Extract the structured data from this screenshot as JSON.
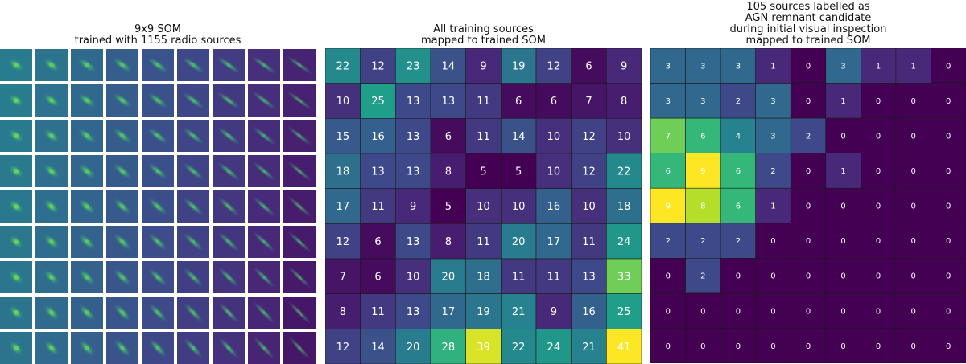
{
  "colors": {
    "viridis": [
      "#440154",
      "#482878",
      "#3e4989",
      "#31688e",
      "#26828e",
      "#1f9e89",
      "#35b779",
      "#6ece58",
      "#b5de2b",
      "#fde725"
    ],
    "grid_line": "#1a1a1a",
    "text_on_cell": "#ffffff"
  },
  "som_panel": {
    "title_lines": [
      "9x9 SOM",
      "trained with 1155 radio sources"
    ]
  },
  "chart_data": [
    {
      "type": "heatmap",
      "title": "All training sources mapped to trained SOM",
      "title_lines": [
        "All training sources",
        "mapped to trained SOM"
      ],
      "rows": 9,
      "cols": 9,
      "color_range": [
        5,
        41
      ],
      "values": [
        [
          22,
          12,
          23,
          14,
          9,
          19,
          12,
          6,
          9
        ],
        [
          10,
          25,
          13,
          13,
          11,
          6,
          6,
          7,
          8
        ],
        [
          15,
          16,
          13,
          6,
          11,
          14,
          10,
          12,
          10
        ],
        [
          18,
          13,
          13,
          8,
          5,
          5,
          10,
          12,
          22
        ],
        [
          17,
          11,
          9,
          5,
          10,
          10,
          16,
          10,
          18
        ],
        [
          12,
          6,
          13,
          8,
          11,
          20,
          17,
          11,
          24
        ],
        [
          7,
          6,
          10,
          20,
          18,
          11,
          11,
          13,
          33
        ],
        [
          8,
          11,
          13,
          17,
          19,
          21,
          9,
          16,
          25
        ],
        [
          12,
          14,
          20,
          28,
          39,
          22,
          24,
          21,
          41
        ]
      ]
    },
    {
      "type": "heatmap",
      "title": "105 sources labelled as AGN remnant candidate during initial visual inspection mapped to trained SOM",
      "title_lines": [
        "105 sources labelled as",
        "AGN remnant candidate",
        "during initial visual inspection",
        "mapped to trained SOM"
      ],
      "rows": 9,
      "cols": 9,
      "color_range": [
        0,
        9
      ],
      "values": [
        [
          3,
          3,
          3,
          1,
          0,
          3,
          1,
          1,
          0
        ],
        [
          3,
          3,
          2,
          3,
          0,
          1,
          0,
          0,
          0
        ],
        [
          7,
          6,
          4,
          3,
          2,
          0,
          0,
          0,
          0
        ],
        [
          6,
          9,
          6,
          2,
          0,
          1,
          0,
          0,
          0
        ],
        [
          9,
          8,
          6,
          1,
          0,
          0,
          0,
          0,
          0
        ],
        [
          2,
          2,
          2,
          0,
          0,
          0,
          0,
          0,
          0
        ],
        [
          0,
          2,
          0,
          0,
          0,
          0,
          0,
          0,
          0
        ],
        [
          0,
          0,
          0,
          0,
          0,
          0,
          0,
          0,
          0
        ],
        [
          0,
          0,
          0,
          0,
          0,
          0,
          0,
          0,
          0
        ]
      ]
    }
  ]
}
